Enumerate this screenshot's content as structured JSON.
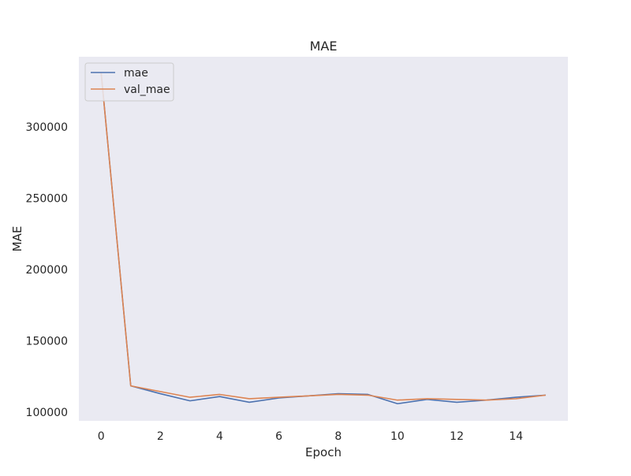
{
  "chart_data": {
    "type": "line",
    "title": "MAE",
    "xlabel": "Epoch",
    "ylabel": "MAE",
    "x": [
      0,
      1,
      2,
      3,
      4,
      5,
      6,
      7,
      8,
      9,
      10,
      11,
      12,
      13,
      14,
      15
    ],
    "series": [
      {
        "name": "mae",
        "color": "#4c72b0",
        "values": [
          338000,
          118500,
          113000,
          108000,
          111000,
          107000,
          110000,
          111500,
          113000,
          112500,
          106000,
          109000,
          107000,
          108500,
          110500,
          112000
        ]
      },
      {
        "name": "val_mae",
        "color": "#dd8452",
        "values": [
          338000,
          118500,
          114500,
          110500,
          112500,
          109500,
          110500,
          111500,
          112500,
          112000,
          108500,
          109500,
          109000,
          108500,
          109500,
          112000
        ]
      }
    ],
    "xticks": [
      "0",
      "2",
      "4",
      "6",
      "8",
      "10",
      "12",
      "14"
    ],
    "xtick_values": [
      0,
      2,
      4,
      6,
      8,
      10,
      12,
      14
    ],
    "yticks": [
      "100000",
      "150000",
      "200000",
      "250000",
      "300000"
    ],
    "ytick_values": [
      100000,
      150000,
      200000,
      250000,
      300000
    ],
    "xlim": [
      -0.75,
      15.75
    ],
    "ylim": [
      94000,
      349000
    ],
    "grid": false,
    "background": "#eaeaf2",
    "legend_position": "upper-left"
  }
}
